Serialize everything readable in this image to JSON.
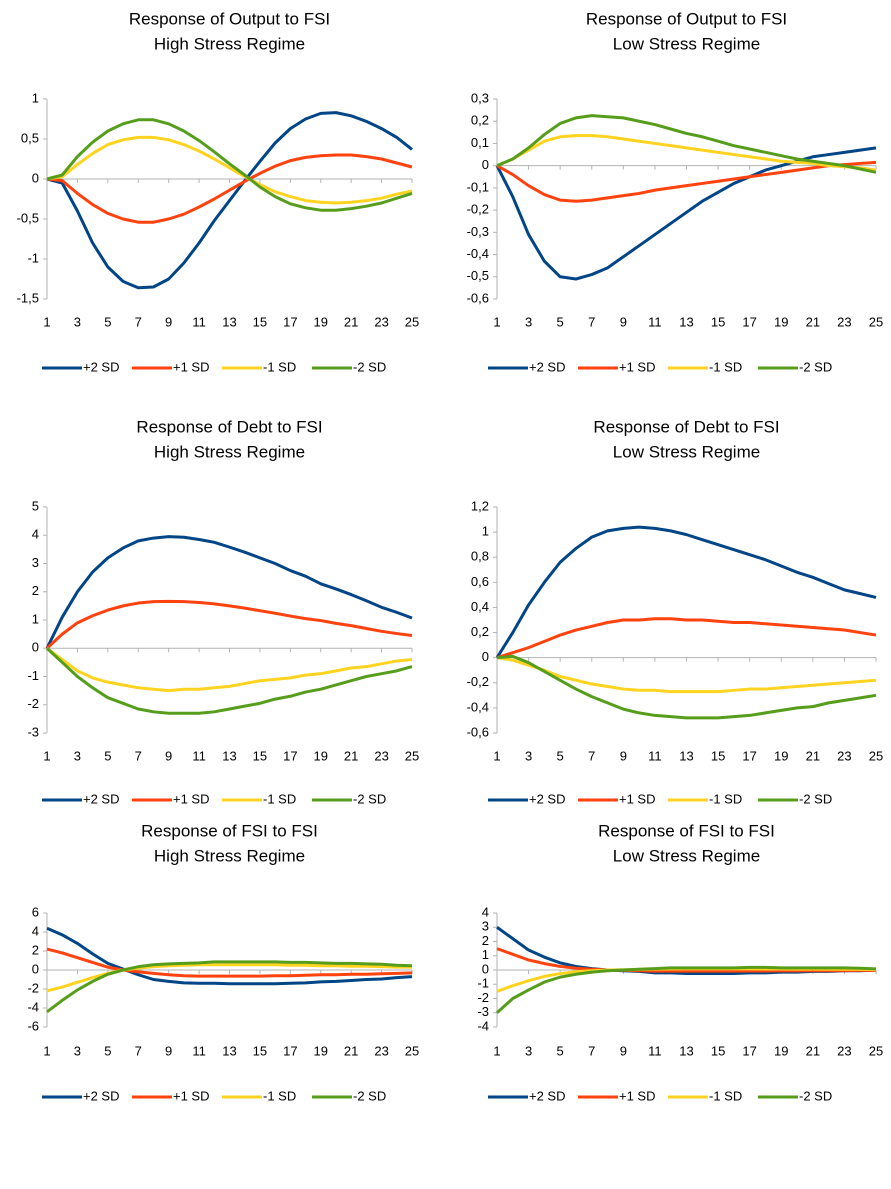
{
  "chart_data": [
    {
      "type": "line",
      "title": "Response of Output to FSI",
      "subtitle": "High Stress Regime",
      "x": [
        1,
        2,
        3,
        4,
        5,
        6,
        7,
        8,
        9,
        10,
        11,
        12,
        13,
        14,
        15,
        16,
        17,
        18,
        19,
        20,
        21,
        22,
        23,
        24,
        25
      ],
      "xlim": [
        1,
        25
      ],
      "xticks": [
        1,
        3,
        5,
        7,
        9,
        11,
        13,
        15,
        17,
        19,
        21,
        23,
        25
      ],
      "ylim": [
        -1.5,
        1
      ],
      "yticks": [
        {
          "value": -1.5,
          "label": "-1,5"
        },
        -1,
        {
          "value": -0.5,
          "label": "-0,5"
        },
        0,
        {
          "value": 0.5,
          "label": "0,5"
        },
        1
      ],
      "series": [
        {
          "name": "+2 SD",
          "color": "#004586",
          "values": [
            0,
            -0.05,
            -0.4,
            -0.8,
            -1.1,
            -1.28,
            -1.36,
            -1.35,
            -1.25,
            -1.05,
            -0.8,
            -0.52,
            -0.27,
            -0.02,
            0.22,
            0.45,
            0.63,
            0.75,
            0.82,
            0.83,
            0.79,
            0.72,
            0.63,
            0.52,
            0.37
          ]
        },
        {
          "name": "+1 SD",
          "color": "#ff420e",
          "values": [
            0,
            -0.02,
            -0.18,
            -0.32,
            -0.43,
            -0.5,
            -0.54,
            -0.54,
            -0.5,
            -0.44,
            -0.35,
            -0.25,
            -0.14,
            -0.03,
            0.07,
            0.16,
            0.23,
            0.27,
            0.29,
            0.3,
            0.3,
            0.28,
            0.25,
            0.2,
            0.15
          ]
        },
        {
          "name": "-1 SD",
          "color": "#ffd320",
          "values": [
            0,
            0.03,
            0.18,
            0.32,
            0.43,
            0.49,
            0.52,
            0.52,
            0.49,
            0.43,
            0.35,
            0.25,
            0.14,
            0.03,
            -0.07,
            -0.16,
            -0.22,
            -0.27,
            -0.29,
            -0.3,
            -0.29,
            -0.27,
            -0.24,
            -0.19,
            -0.15
          ]
        },
        {
          "name": "-2 SD",
          "color": "#579d1c",
          "values": [
            0,
            0.05,
            0.28,
            0.46,
            0.6,
            0.69,
            0.74,
            0.74,
            0.69,
            0.6,
            0.48,
            0.34,
            0.19,
            0.05,
            -0.1,
            -0.22,
            -0.31,
            -0.36,
            -0.39,
            -0.39,
            -0.37,
            -0.34,
            -0.3,
            -0.24,
            -0.18
          ]
        }
      ]
    },
    {
      "type": "line",
      "title": "Response of Output to FSI",
      "subtitle": "Low Stress Regime",
      "x": [
        1,
        2,
        3,
        4,
        5,
        6,
        7,
        8,
        9,
        10,
        11,
        12,
        13,
        14,
        15,
        16,
        17,
        18,
        19,
        20,
        21,
        22,
        23,
        24,
        25
      ],
      "xlim": [
        1,
        25
      ],
      "xticks": [
        1,
        3,
        5,
        7,
        9,
        11,
        13,
        15,
        17,
        19,
        21,
        23,
        25
      ],
      "ylim": [
        -0.6,
        0.3
      ],
      "yticks": [
        {
          "value": -0.6,
          "label": "-0,6"
        },
        {
          "value": -0.5,
          "label": "-0,5"
        },
        {
          "value": -0.4,
          "label": "-0,4"
        },
        {
          "value": -0.3,
          "label": "-0,3"
        },
        {
          "value": -0.2,
          "label": "-0,2"
        },
        {
          "value": -0.1,
          "label": "-0,1"
        },
        0,
        {
          "value": 0.1,
          "label": "0,1"
        },
        {
          "value": 0.2,
          "label": "0,2"
        },
        {
          "value": 0.3,
          "label": "0,3"
        }
      ],
      "series": [
        {
          "name": "+2 SD",
          "color": "#004586",
          "values": [
            0,
            -0.14,
            -0.31,
            -0.43,
            -0.5,
            -0.51,
            -0.49,
            -0.46,
            -0.41,
            -0.36,
            -0.31,
            -0.26,
            -0.21,
            -0.16,
            -0.12,
            -0.08,
            -0.05,
            -0.02,
            0,
            0.02,
            0.04,
            0.05,
            0.06,
            0.07,
            0.08
          ]
        },
        {
          "name": "+1 SD",
          "color": "#ff420e",
          "values": [
            0,
            -0.04,
            -0.09,
            -0.13,
            -0.155,
            -0.16,
            -0.155,
            -0.145,
            -0.135,
            -0.125,
            -0.11,
            -0.1,
            -0.09,
            -0.08,
            -0.07,
            -0.06,
            -0.05,
            -0.04,
            -0.03,
            -0.02,
            -0.01,
            0,
            0.005,
            0.01,
            0.015
          ]
        },
        {
          "name": "-1 SD",
          "color": "#ffd320",
          "values": [
            0,
            0.03,
            0.07,
            0.11,
            0.13,
            0.135,
            0.135,
            0.13,
            0.12,
            0.11,
            0.1,
            0.09,
            0.08,
            0.07,
            0.06,
            0.05,
            0.04,
            0.03,
            0.02,
            0.015,
            0.01,
            0,
            -0.005,
            -0.01,
            -0.02
          ]
        },
        {
          "name": "-2 SD",
          "color": "#579d1c",
          "values": [
            0,
            0.03,
            0.08,
            0.14,
            0.19,
            0.215,
            0.225,
            0.22,
            0.215,
            0.2,
            0.185,
            0.165,
            0.145,
            0.13,
            0.11,
            0.09,
            0.075,
            0.06,
            0.045,
            0.03,
            0.02,
            0.01,
            0,
            -0.015,
            -0.03
          ]
        }
      ]
    },
    {
      "type": "line",
      "title": "Response of Debt to FSI",
      "subtitle": "High Stress Regime",
      "x": [
        1,
        2,
        3,
        4,
        5,
        6,
        7,
        8,
        9,
        10,
        11,
        12,
        13,
        14,
        15,
        16,
        17,
        18,
        19,
        20,
        21,
        22,
        23,
        24,
        25
      ],
      "xlim": [
        1,
        25
      ],
      "xticks": [
        1,
        3,
        5,
        7,
        9,
        11,
        13,
        15,
        17,
        19,
        21,
        23,
        25
      ],
      "ylim": [
        -3,
        5
      ],
      "yticks": [
        -3,
        -2,
        -1,
        0,
        1,
        2,
        3,
        4,
        5
      ],
      "series": [
        {
          "name": "+2 SD",
          "color": "#004586",
          "values": [
            0,
            1.1,
            2.0,
            2.7,
            3.2,
            3.55,
            3.8,
            3.9,
            3.95,
            3.93,
            3.85,
            3.75,
            3.58,
            3.4,
            3.2,
            3.0,
            2.75,
            2.55,
            2.28,
            2.1,
            1.9,
            1.68,
            1.45,
            1.27,
            1.07
          ]
        },
        {
          "name": "+1 SD",
          "color": "#ff420e",
          "values": [
            0,
            0.5,
            0.9,
            1.15,
            1.35,
            1.5,
            1.6,
            1.65,
            1.66,
            1.65,
            1.62,
            1.57,
            1.5,
            1.42,
            1.33,
            1.24,
            1.14,
            1.05,
            0.98,
            0.88,
            0.8,
            0.7,
            0.6,
            0.52,
            0.45
          ]
        },
        {
          "name": "-1 SD",
          "color": "#ffd320",
          "values": [
            0,
            -0.4,
            -0.8,
            -1.05,
            -1.2,
            -1.3,
            -1.4,
            -1.45,
            -1.5,
            -1.45,
            -1.45,
            -1.4,
            -1.35,
            -1.25,
            -1.15,
            -1.1,
            -1.05,
            -0.95,
            -0.9,
            -0.8,
            -0.7,
            -0.65,
            -0.55,
            -0.45,
            -0.4
          ]
        },
        {
          "name": "-2 SD",
          "color": "#579d1c",
          "values": [
            0,
            -0.5,
            -1.0,
            -1.4,
            -1.75,
            -1.95,
            -2.15,
            -2.25,
            -2.3,
            -2.3,
            -2.3,
            -2.25,
            -2.15,
            -2.05,
            -1.95,
            -1.8,
            -1.7,
            -1.55,
            -1.45,
            -1.3,
            -1.15,
            -1.0,
            -0.9,
            -0.8,
            -0.65
          ]
        }
      ]
    },
    {
      "type": "line",
      "title": "Response of Debt to FSI",
      "subtitle": "Low Stress Regime",
      "x": [
        1,
        2,
        3,
        4,
        5,
        6,
        7,
        8,
        9,
        10,
        11,
        12,
        13,
        14,
        15,
        16,
        17,
        18,
        19,
        20,
        21,
        22,
        23,
        24,
        25
      ],
      "xlim": [
        1,
        25
      ],
      "xticks": [
        1,
        3,
        5,
        7,
        9,
        11,
        13,
        15,
        17,
        19,
        21,
        23,
        25
      ],
      "ylim": [
        -0.6,
        1.2
      ],
      "yticks": [
        {
          "value": -0.6,
          "label": "-0,6"
        },
        {
          "value": -0.4,
          "label": "-0,4"
        },
        {
          "value": -0.2,
          "label": "-0,2"
        },
        0,
        {
          "value": 0.2,
          "label": "0,2"
        },
        {
          "value": 0.4,
          "label": "0,4"
        },
        {
          "value": 0.6,
          "label": "0,6"
        },
        {
          "value": 0.8,
          "label": "0,8"
        },
        1,
        {
          "value": 1.2,
          "label": "1,2"
        }
      ],
      "series": [
        {
          "name": "+2 SD",
          "color": "#004586",
          "values": [
            0,
            0.2,
            0.42,
            0.6,
            0.76,
            0.87,
            0.96,
            1.01,
            1.03,
            1.04,
            1.03,
            1.01,
            0.98,
            0.94,
            0.9,
            0.86,
            0.82,
            0.78,
            0.73,
            0.68,
            0.64,
            0.59,
            0.54,
            0.51,
            0.48
          ]
        },
        {
          "name": "+1 SD",
          "color": "#ff420e",
          "values": [
            0,
            0.04,
            0.08,
            0.13,
            0.18,
            0.22,
            0.25,
            0.28,
            0.3,
            0.3,
            0.31,
            0.31,
            0.3,
            0.3,
            0.29,
            0.28,
            0.28,
            0.27,
            0.26,
            0.25,
            0.24,
            0.23,
            0.22,
            0.2,
            0.18
          ]
        },
        {
          "name": "-1 SD",
          "color": "#ffd320",
          "values": [
            0,
            -0.02,
            -0.06,
            -0.1,
            -0.15,
            -0.18,
            -0.21,
            -0.23,
            -0.25,
            -0.26,
            -0.26,
            -0.27,
            -0.27,
            -0.27,
            -0.27,
            -0.26,
            -0.25,
            -0.25,
            -0.24,
            -0.23,
            -0.22,
            -0.21,
            -0.2,
            -0.19,
            -0.18
          ]
        },
        {
          "name": "-2 SD",
          "color": "#579d1c",
          "values": [
            0,
            0.01,
            -0.04,
            -0.11,
            -0.18,
            -0.25,
            -0.31,
            -0.36,
            -0.41,
            -0.44,
            -0.46,
            -0.47,
            -0.48,
            -0.48,
            -0.48,
            -0.47,
            -0.46,
            -0.44,
            -0.42,
            -0.4,
            -0.39,
            -0.36,
            -0.34,
            -0.32,
            -0.3
          ]
        }
      ]
    },
    {
      "type": "line",
      "title": "Response of FSI to FSI",
      "subtitle": "High Stress Regime",
      "x": [
        1,
        2,
        3,
        4,
        5,
        6,
        7,
        8,
        9,
        10,
        11,
        12,
        13,
        14,
        15,
        16,
        17,
        18,
        19,
        20,
        21,
        22,
        23,
        24,
        25
      ],
      "xlim": [
        1,
        25
      ],
      "xticks": [
        1,
        3,
        5,
        7,
        9,
        11,
        13,
        15,
        17,
        19,
        21,
        23,
        25
      ],
      "ylim": [
        -6,
        6
      ],
      "yticks": [
        -6,
        -4,
        -2,
        0,
        2,
        4,
        6
      ],
      "series": [
        {
          "name": "+2 SD",
          "color": "#004586",
          "values": [
            4.4,
            3.7,
            2.8,
            1.7,
            0.7,
            0.1,
            -0.5,
            -1.0,
            -1.2,
            -1.35,
            -1.4,
            -1.4,
            -1.45,
            -1.45,
            -1.45,
            -1.45,
            -1.4,
            -1.35,
            -1.25,
            -1.2,
            -1.1,
            -1.0,
            -0.95,
            -0.8,
            -0.7
          ]
        },
        {
          "name": "+1 SD",
          "color": "#ff420e",
          "values": [
            2.2,
            1.8,
            1.3,
            0.8,
            0.3,
            0.0,
            -0.2,
            -0.35,
            -0.5,
            -0.6,
            -0.65,
            -0.65,
            -0.65,
            -0.65,
            -0.65,
            -0.6,
            -0.6,
            -0.55,
            -0.5,
            -0.5,
            -0.45,
            -0.45,
            -0.4,
            -0.35,
            -0.3
          ]
        },
        {
          "name": "-1 SD",
          "color": "#ffd320",
          "values": [
            -2.2,
            -1.8,
            -1.3,
            -0.8,
            -0.35,
            0.0,
            0.2,
            0.35,
            0.45,
            0.5,
            0.55,
            0.55,
            0.55,
            0.55,
            0.55,
            0.55,
            0.5,
            0.5,
            0.45,
            0.45,
            0.4,
            0.4,
            0.35,
            0.3,
            0.3
          ]
        },
        {
          "name": "-2 SD",
          "color": "#579d1c",
          "values": [
            -4.4,
            -3.2,
            -2.1,
            -1.2,
            -0.45,
            0.0,
            0.35,
            0.55,
            0.65,
            0.7,
            0.75,
            0.85,
            0.85,
            0.85,
            0.85,
            0.85,
            0.8,
            0.8,
            0.75,
            0.7,
            0.7,
            0.65,
            0.6,
            0.5,
            0.45
          ]
        }
      ]
    },
    {
      "type": "line",
      "title": "Response of FSI to FSI",
      "subtitle": "Low Stress Regime",
      "x": [
        1,
        2,
        3,
        4,
        5,
        6,
        7,
        8,
        9,
        10,
        11,
        12,
        13,
        14,
        15,
        16,
        17,
        18,
        19,
        20,
        21,
        22,
        23,
        24,
        25
      ],
      "xlim": [
        1,
        25
      ],
      "xticks": [
        1,
        3,
        5,
        7,
        9,
        11,
        13,
        15,
        17,
        19,
        21,
        23,
        25
      ],
      "ylim": [
        -4,
        4
      ],
      "yticks": [
        -4,
        -3,
        -2,
        -1,
        0,
        1,
        2,
        3,
        4
      ],
      "series": [
        {
          "name": "+2 SD",
          "color": "#004586",
          "values": [
            3.0,
            2.2,
            1.4,
            0.9,
            0.5,
            0.25,
            0.1,
            0.0,
            -0.05,
            -0.1,
            -0.2,
            -0.2,
            -0.25,
            -0.25,
            -0.25,
            -0.25,
            -0.2,
            -0.2,
            -0.15,
            -0.15,
            -0.1,
            -0.1,
            -0.05,
            -0.05,
            0
          ]
        },
        {
          "name": "+1 SD",
          "color": "#ff420e",
          "values": [
            1.5,
            1.1,
            0.7,
            0.45,
            0.25,
            0.12,
            0.05,
            0,
            -0.02,
            -0.05,
            -0.08,
            -0.08,
            -0.08,
            -0.08,
            -0.08,
            -0.08,
            -0.07,
            -0.07,
            -0.06,
            -0.06,
            -0.05,
            -0.05,
            -0.04,
            -0.03,
            -0.03
          ]
        },
        {
          "name": "-1 SD",
          "color": "#ffd320",
          "values": [
            -1.5,
            -1.1,
            -0.75,
            -0.45,
            -0.25,
            -0.12,
            -0.05,
            0,
            0.02,
            0.04,
            0.06,
            0.07,
            0.08,
            0.08,
            0.08,
            0.08,
            0.08,
            0.07,
            0.07,
            0.06,
            0.06,
            0.05,
            0.05,
            0.04,
            0.03
          ]
        },
        {
          "name": "-2 SD",
          "color": "#579d1c",
          "values": [
            -3.0,
            -2.0,
            -1.4,
            -0.85,
            -0.5,
            -0.3,
            -0.15,
            -0.05,
            0.0,
            0.05,
            0.1,
            0.15,
            0.15,
            0.15,
            0.15,
            0.15,
            0.18,
            0.18,
            0.15,
            0.15,
            0.15,
            0.15,
            0.15,
            0.12,
            0.08
          ]
        }
      ]
    }
  ]
}
